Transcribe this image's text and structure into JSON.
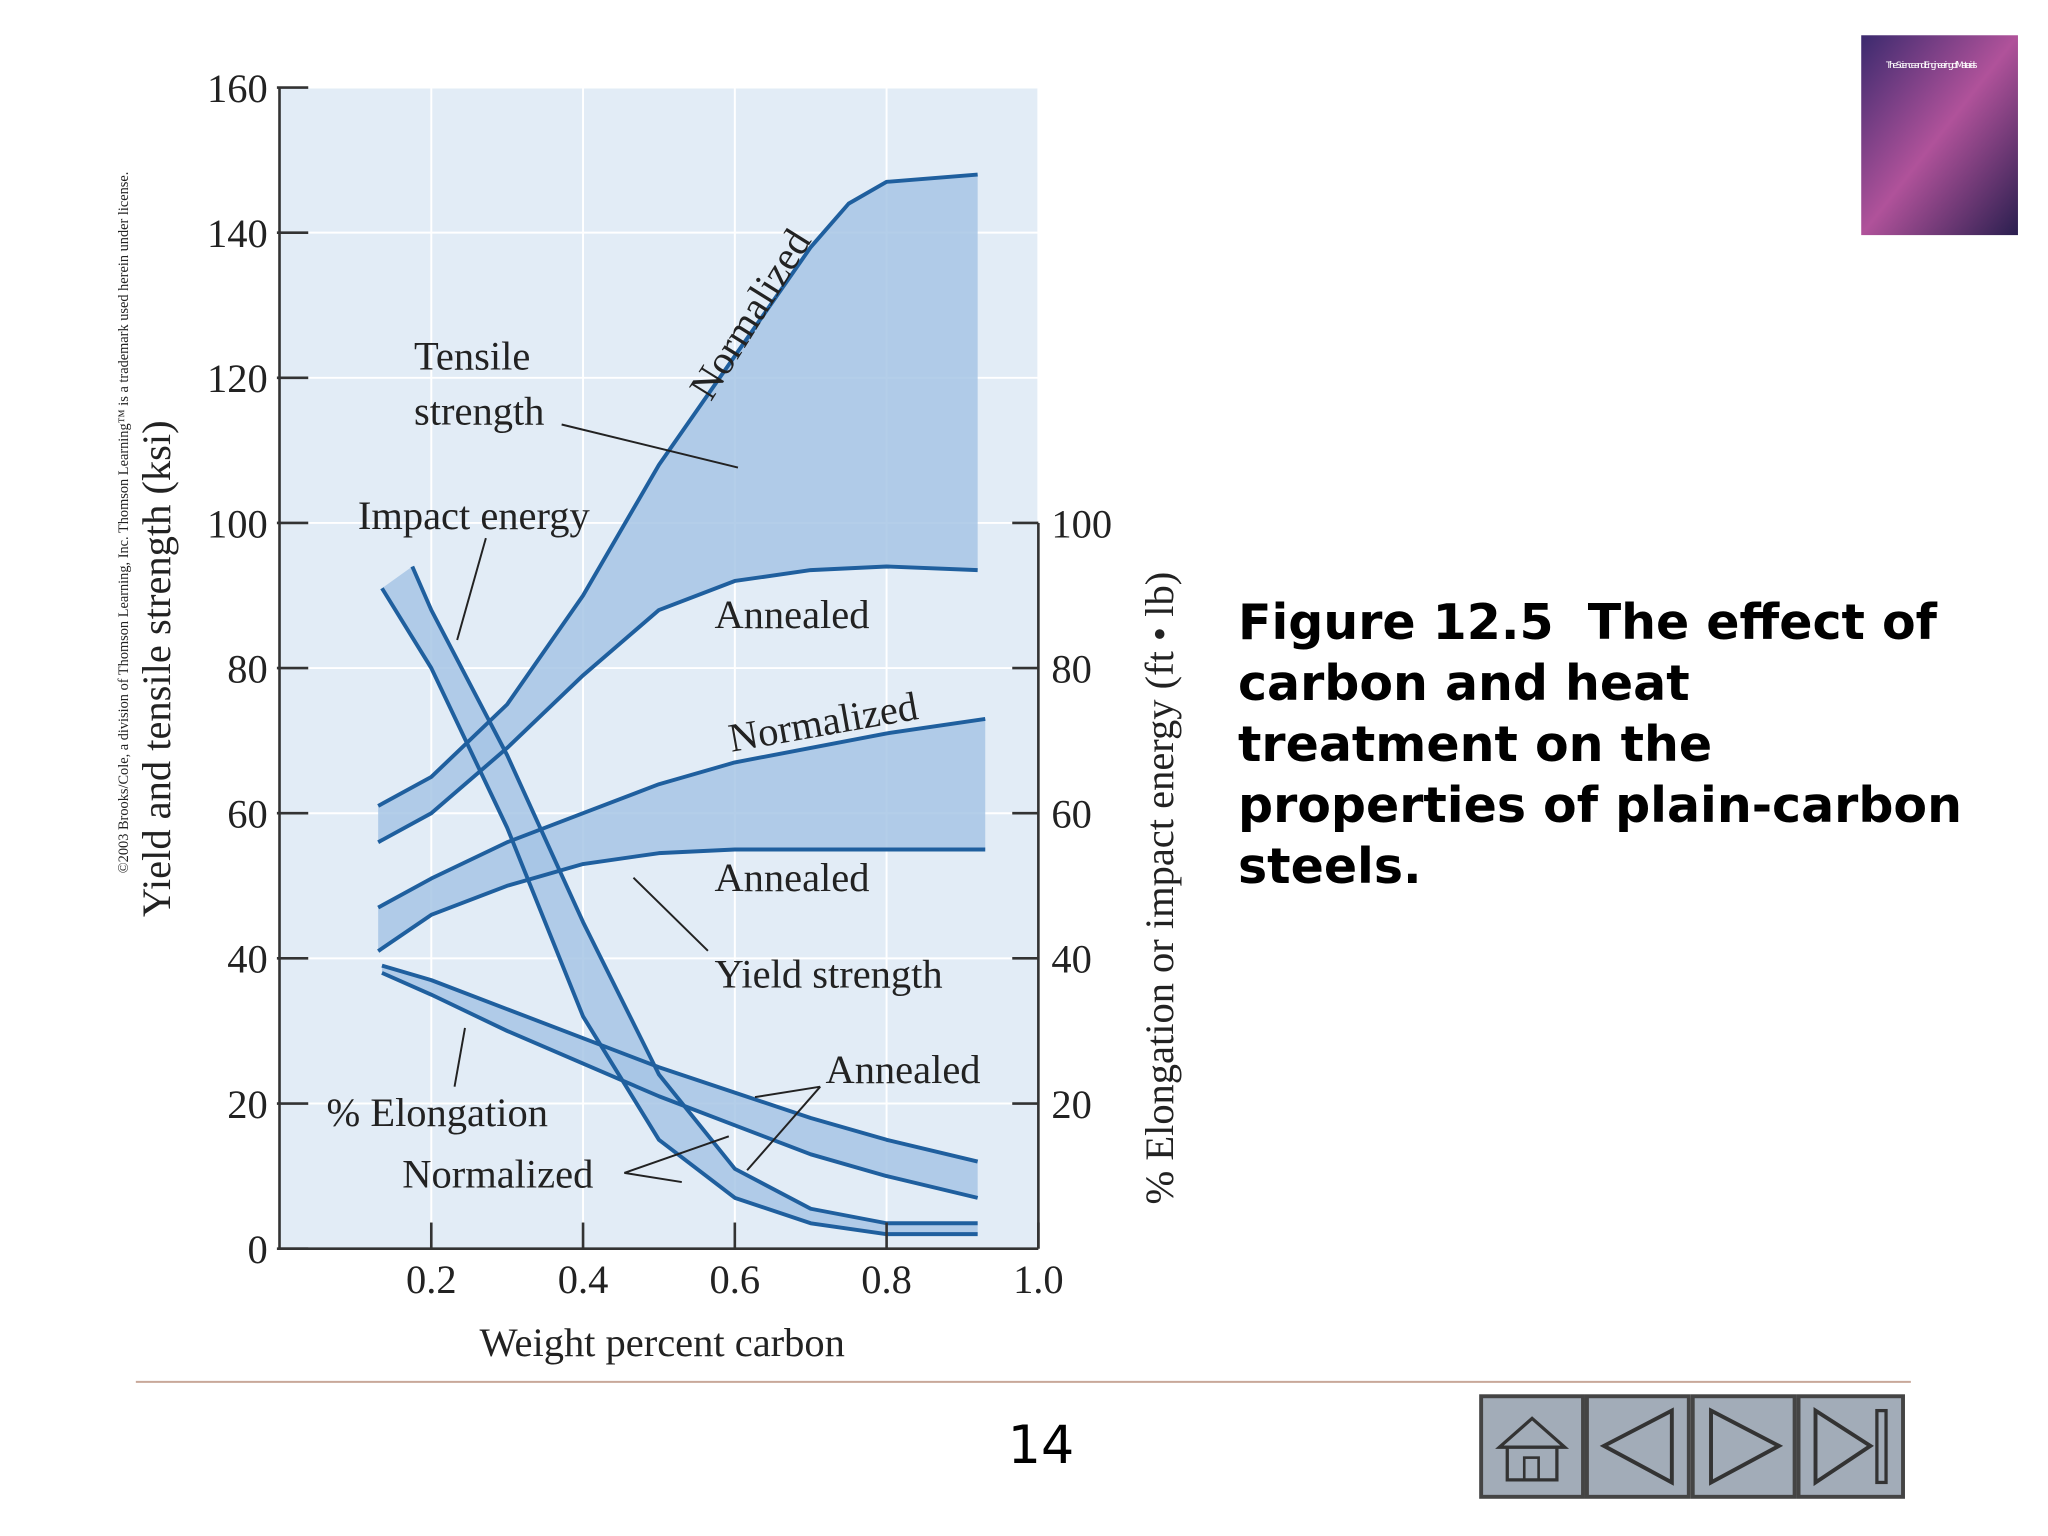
{
  "slide": {
    "caption_lines": [
      "Figure 12.5  The effect of",
      "carbon and heat",
      "treatment on the",
      "properties of plain-carbon",
      "steels."
    ],
    "page_number": "14",
    "copyright": "©2003 Brooks/Cole, a division of Thomson Learning, Inc.  Thomson Learning™ is a trademark used herein under license.",
    "cover_title": "The Science and Engineering of Materials"
  },
  "chart_data": {
    "type": "line",
    "xlabel": "Weight percent carbon",
    "ylabel": "Yield and tensile strength (ksi)",
    "y2label": "% Elongation or impact energy (ft • lb)",
    "xlim": [
      0,
      1
    ],
    "xticks": [
      0.2,
      0.4,
      0.6,
      0.8,
      {
        "value": 1,
        "label": "1.0"
      }
    ],
    "ylim": [
      0,
      160
    ],
    "yticks": [
      0,
      20,
      40,
      60,
      80,
      100,
      120,
      140,
      160
    ],
    "y2lim": [
      0,
      160
    ],
    "y2ticks": [
      20,
      40,
      60,
      80,
      100
    ],
    "grid": true,
    "background": "#e2ecf6",
    "band_color": "#a7c5e5",
    "series": [
      {
        "color": "#1f5f9e",
        "x": [
          0.13,
          0.2,
          0.3,
          0.4,
          0.5,
          0.6,
          0.7,
          0.75,
          0.8,
          0.92
        ],
        "values": [
          61,
          65,
          75,
          90,
          108,
          123,
          138,
          144,
          147,
          148
        ]
      },
      {
        "color": "#1f5f9e",
        "x": [
          0.13,
          0.2,
          0.3,
          0.4,
          0.5,
          0.6,
          0.7,
          0.8,
          0.92
        ],
        "values": [
          56,
          60,
          69,
          79,
          88,
          92,
          93.5,
          94,
          93.5
        ]
      },
      {
        "color": "#1f5f9e",
        "x": [
          0.13,
          0.2,
          0.3,
          0.4,
          0.5,
          0.6,
          0.7,
          0.8,
          0.93
        ],
        "values": [
          47,
          51,
          56,
          60,
          64,
          67,
          69,
          71,
          73
        ]
      },
      {
        "color": "#1f5f9e",
        "x": [
          0.13,
          0.2,
          0.3,
          0.4,
          0.5,
          0.6,
          0.7,
          0.8,
          0.93
        ],
        "values": [
          41,
          46,
          50,
          53,
          54.5,
          55,
          55,
          55,
          55
        ]
      },
      {
        "color": "#1f5f9e",
        "axis": "y2",
        "x": [
          0.175,
          0.2,
          0.3,
          0.4,
          0.5,
          0.6,
          0.7,
          0.8,
          0.92
        ],
        "values": [
          94,
          88,
          68,
          45,
          24,
          11,
          5.5,
          3.5,
          3.5
        ]
      },
      {
        "color": "#1f5f9e",
        "axis": "y2",
        "x": [
          0.135,
          0.2,
          0.3,
          0.4,
          0.5,
          0.6,
          0.7,
          0.8,
          0.92
        ],
        "values": [
          91,
          80,
          58,
          32,
          15,
          7,
          3.5,
          2,
          2
        ]
      },
      {
        "color": "#1f5f9e",
        "axis": "y2",
        "x": [
          0.135,
          0.2,
          0.3,
          0.4,
          0.5,
          0.6,
          0.7,
          0.8,
          0.92
        ],
        "values": [
          39,
          37,
          33,
          29,
          25,
          21.5,
          18,
          15,
          12
        ]
      },
      {
        "color": "#1f5f9e",
        "axis": "y2",
        "x": [
          0.135,
          0.2,
          0.3,
          0.4,
          0.5,
          0.6,
          0.7,
          0.8,
          0.92
        ],
        "values": [
          38,
          35,
          30,
          25.5,
          21,
          17,
          13,
          10,
          7
        ]
      }
    ],
    "annotations": [
      "Normalized",
      "Tensile",
      "strength",
      "Impact energy",
      "Annealed",
      "Normalized",
      "Annealed",
      "Yield strength",
      "Annealed",
      "% Elongation",
      "Normalized"
    ]
  }
}
